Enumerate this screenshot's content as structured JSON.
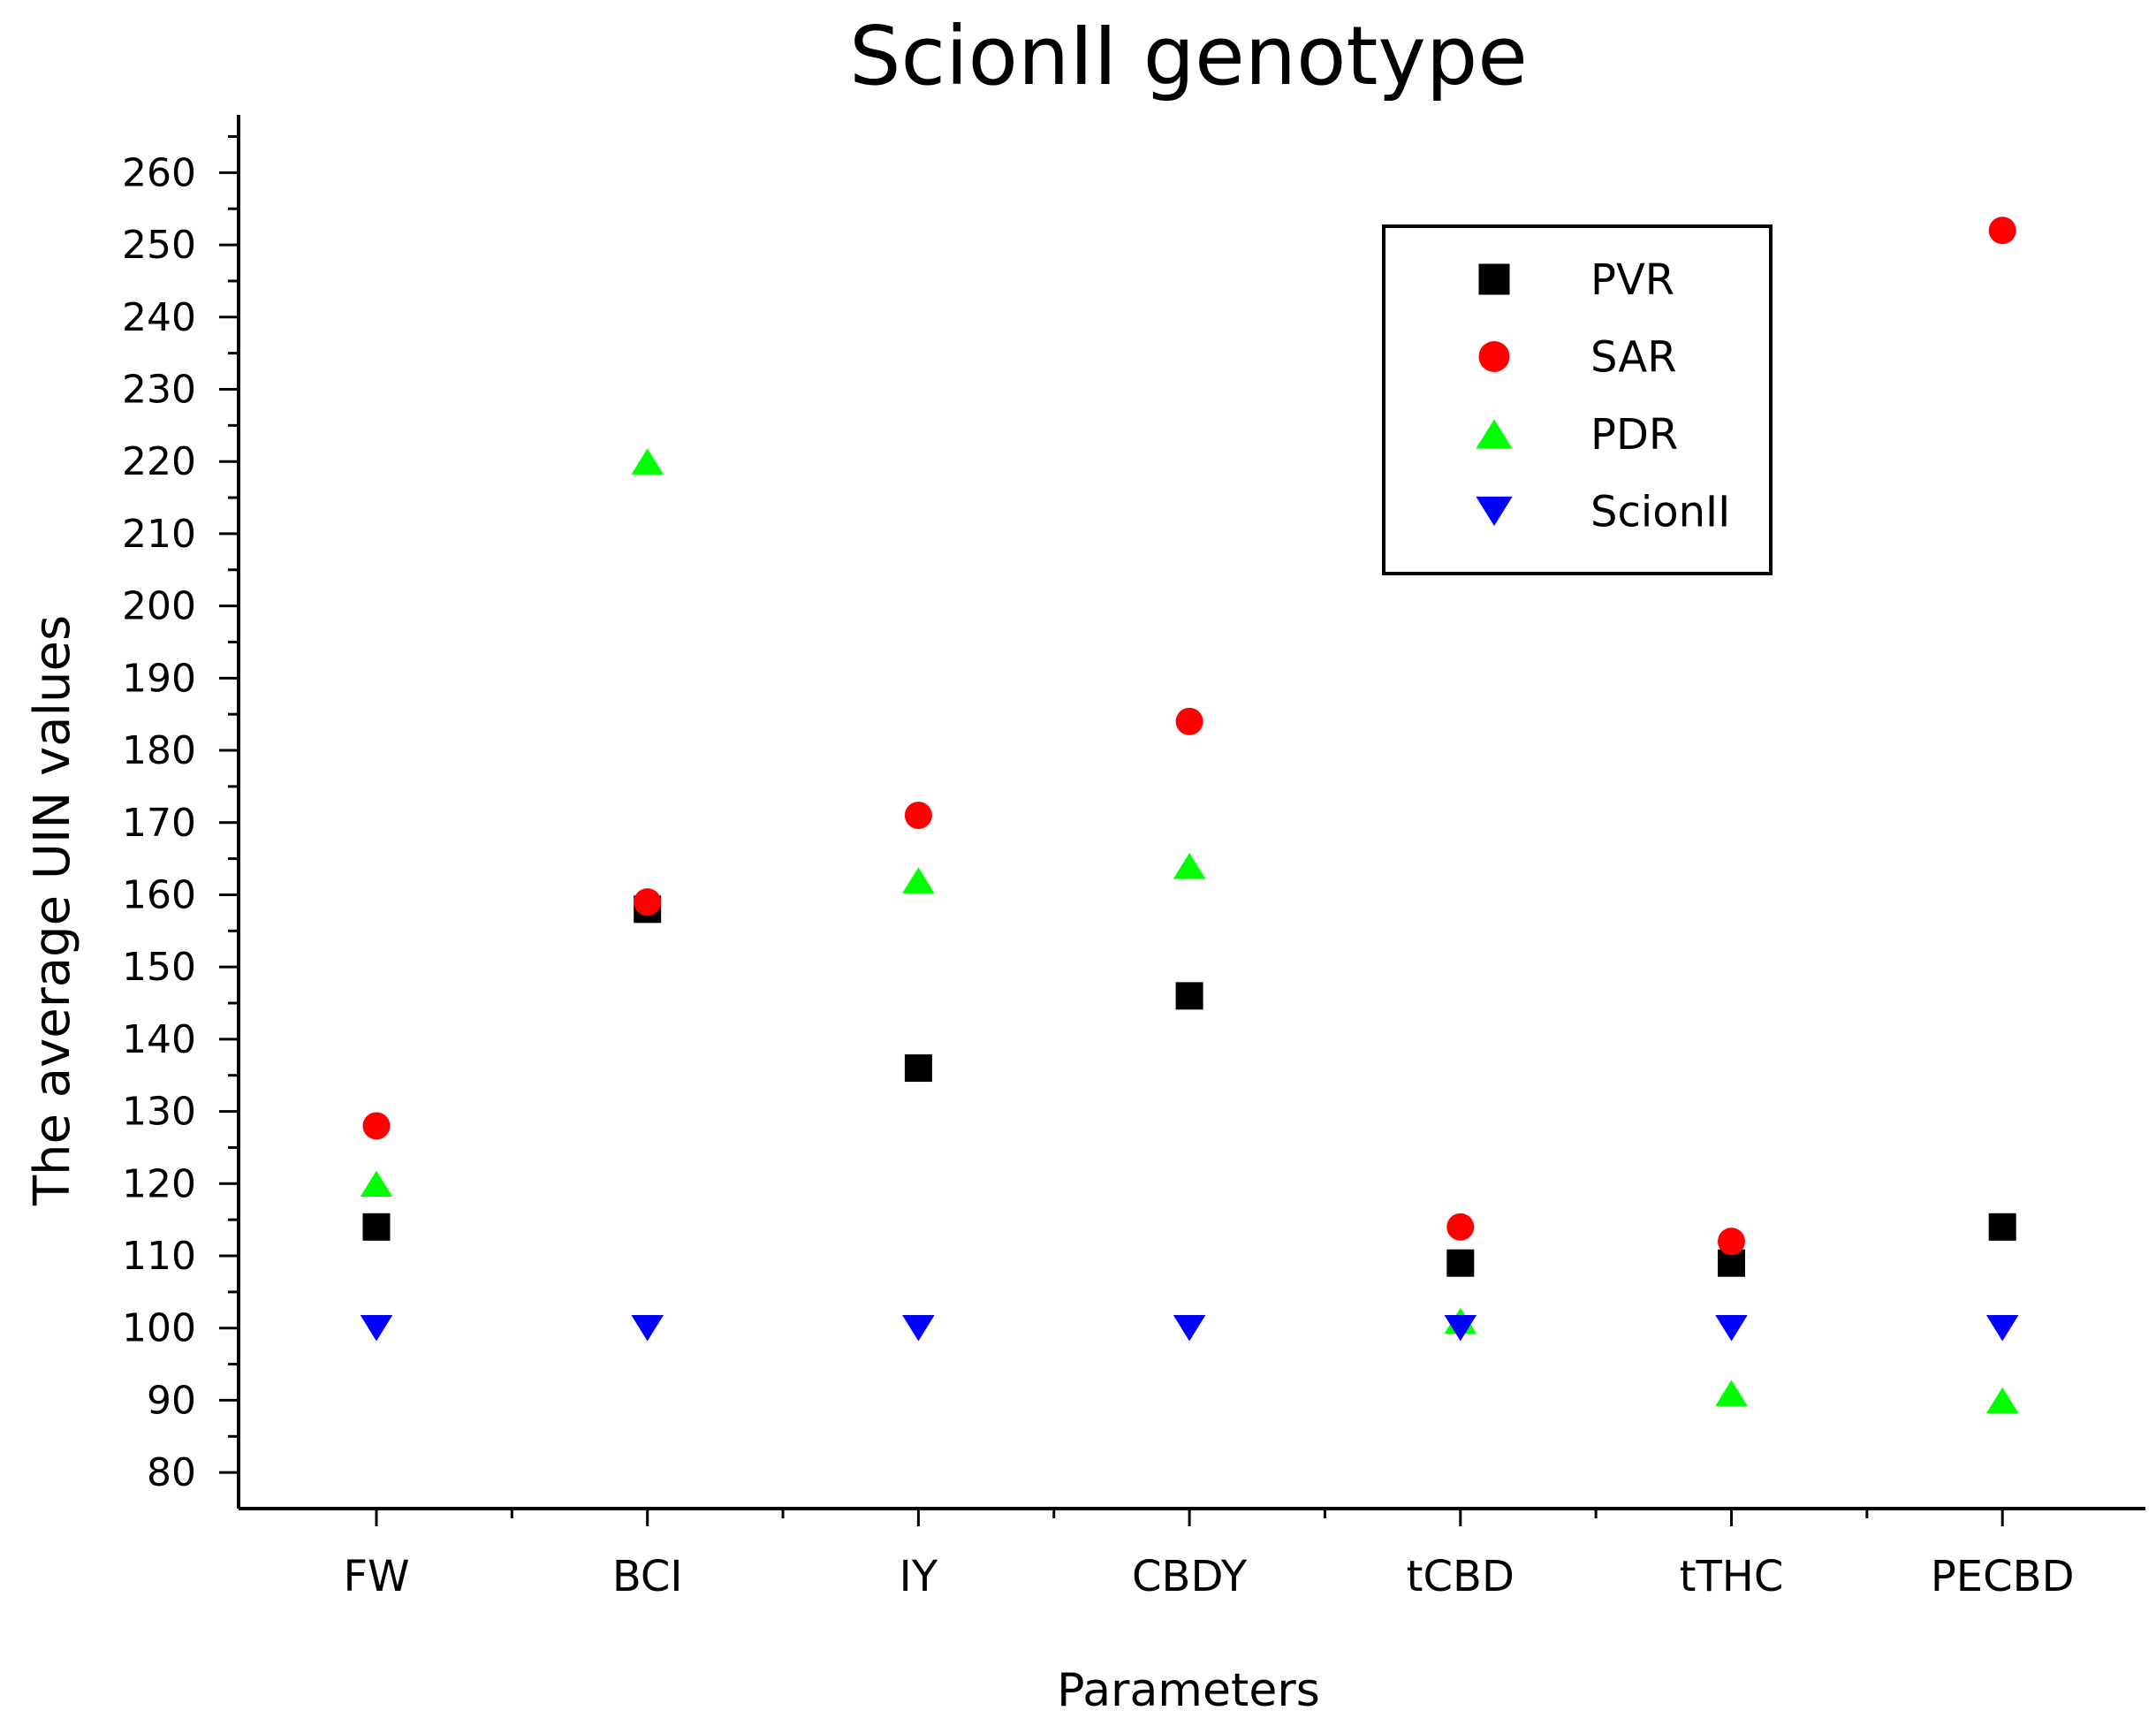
{
  "chart_data": {
    "type": "scatter",
    "title": "ScionII genotype",
    "xlabel": "Parameters",
    "ylabel": "The average UIN values",
    "categories": [
      "FW",
      "BCI",
      "IY",
      "CBDY",
      "tCBD",
      "tTHC",
      "PECBD"
    ],
    "ylim": [
      75,
      268
    ],
    "yticks": [
      80,
      90,
      100,
      110,
      120,
      130,
      140,
      150,
      160,
      170,
      180,
      190,
      200,
      210,
      220,
      230,
      240,
      250,
      260
    ],
    "minor_tick_step": 5,
    "legend_position": "top-right",
    "series": [
      {
        "name": "PVR",
        "marker": "square",
        "color": "#000000",
        "values": [
          114,
          158,
          136,
          146,
          109,
          109,
          114
        ]
      },
      {
        "name": "SAR",
        "marker": "circle",
        "color": "#ff0000",
        "values": [
          128,
          159,
          171,
          184,
          114,
          112,
          252
        ]
      },
      {
        "name": "PDR",
        "marker": "triangle-up",
        "color": "#00ff00",
        "values": [
          120,
          220,
          162,
          164,
          101,
          91,
          90
        ]
      },
      {
        "name": "ScionII",
        "marker": "triangle-down",
        "color": "#0000ff",
        "values": [
          100,
          100,
          100,
          100,
          100,
          100,
          100
        ]
      }
    ]
  }
}
